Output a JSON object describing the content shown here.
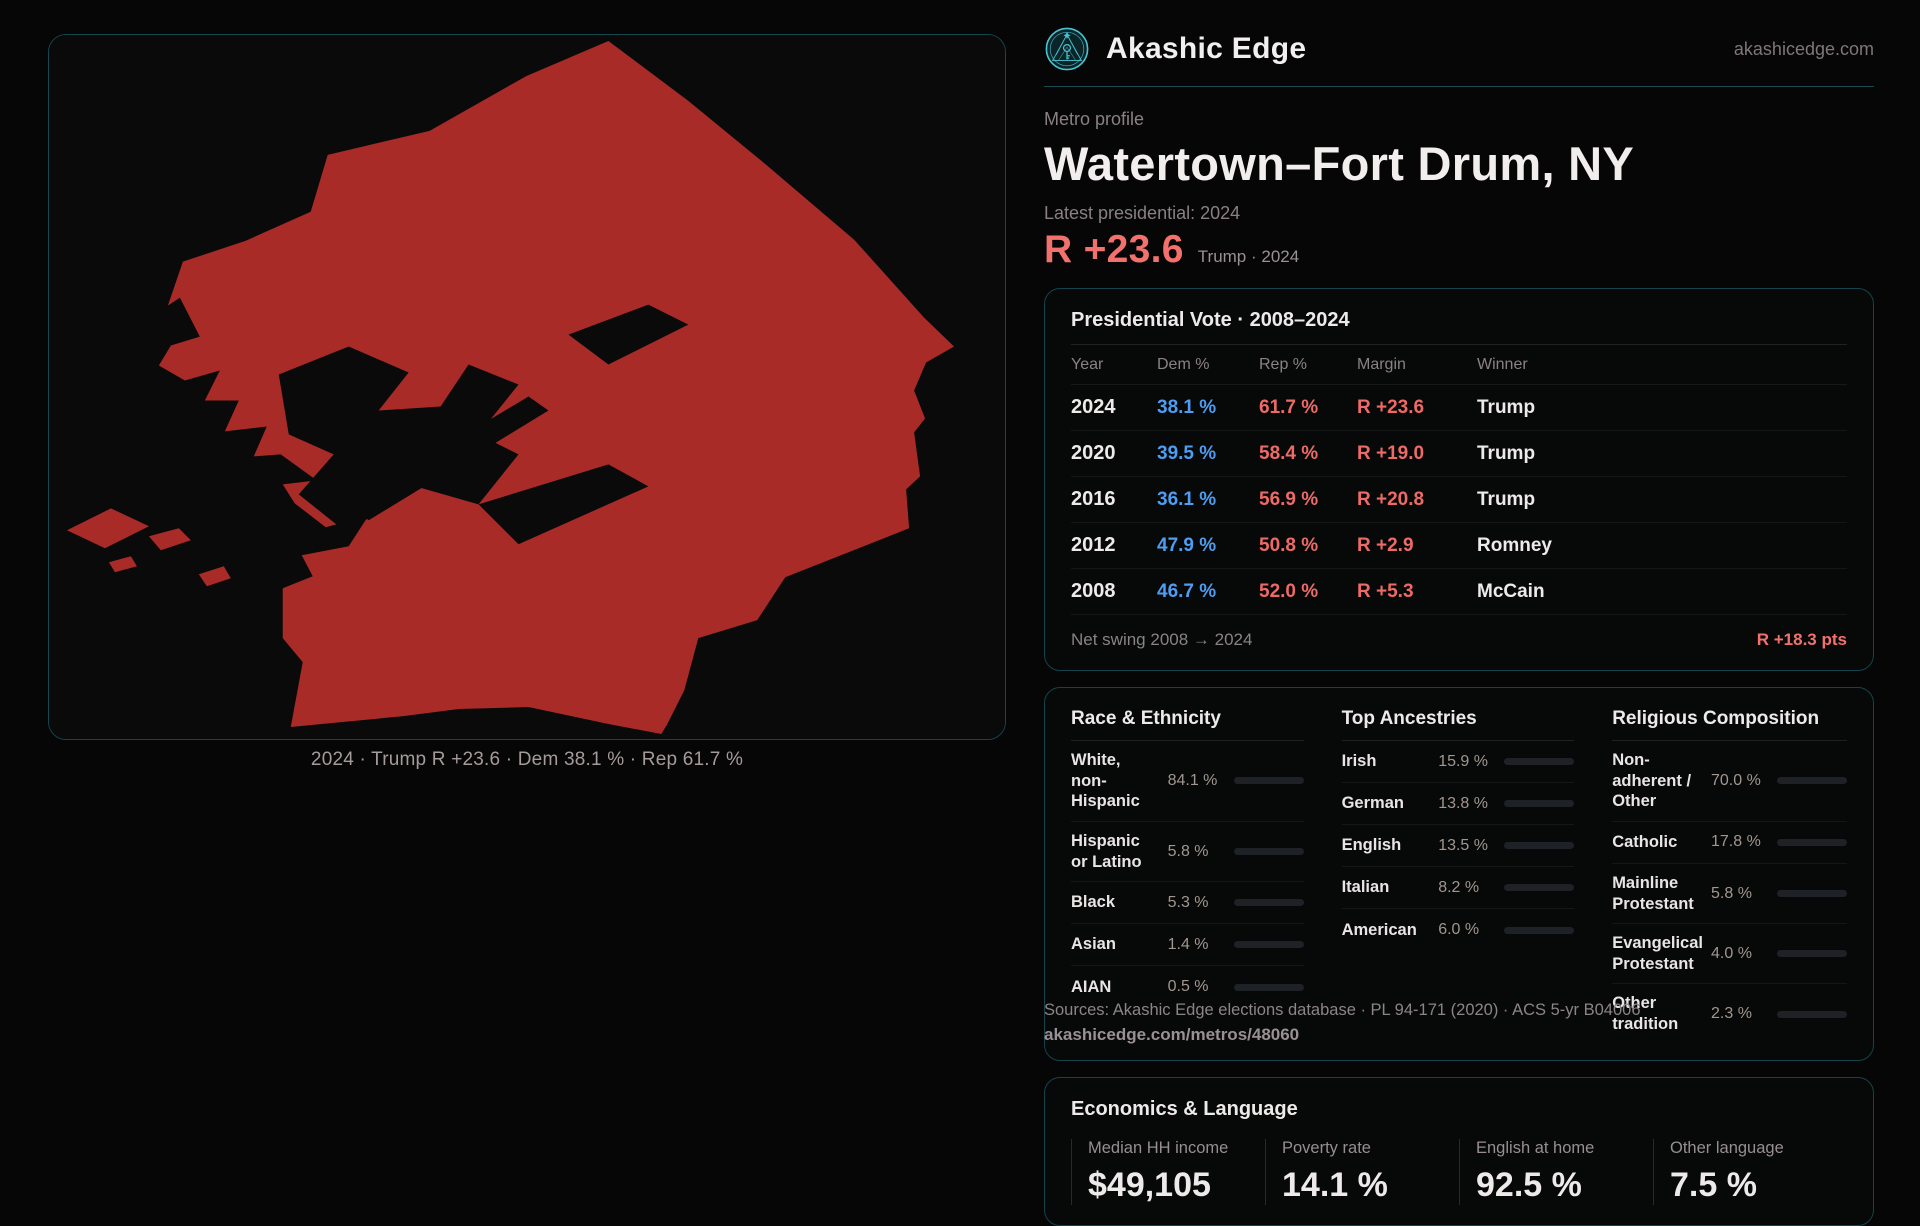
{
  "brand": {
    "name": "Akashic Edge",
    "domain": "akashicedge.com",
    "accent": "#4fc9d5"
  },
  "profile": {
    "eyebrow": "Metro profile",
    "title": "Watertown–Fort Drum, NY",
    "latest_label": "Latest presidential: 2024",
    "headline_margin": "R +23.6",
    "headline_context": "Trump · 2024",
    "margin_color": "#f2716d"
  },
  "map": {
    "caption": "2024 · Trump R +23.6 · Dem 38.1 % · Rep 61.7 %",
    "fill_color": "#a82b28",
    "background": "#0a0a0a",
    "border_color": "#17464e"
  },
  "vote_table": {
    "title": "Presidential Vote · 2008–2024",
    "columns": [
      "Year",
      "Dem %",
      "Rep %",
      "Margin",
      "Winner"
    ],
    "rows": [
      {
        "year": "2024",
        "dem": "38.1 %",
        "rep": "61.7 %",
        "margin": "R +23.6",
        "winner": "Trump"
      },
      {
        "year": "2020",
        "dem": "39.5 %",
        "rep": "58.4 %",
        "margin": "R +19.0",
        "winner": "Trump"
      },
      {
        "year": "2016",
        "dem": "36.1 %",
        "rep": "56.9 %",
        "margin": "R +20.8",
        "winner": "Trump"
      },
      {
        "year": "2012",
        "dem": "47.9 %",
        "rep": "50.8 %",
        "margin": "R +2.9",
        "winner": "Romney"
      },
      {
        "year": "2008",
        "dem": "46.7 %",
        "rep": "52.0 %",
        "margin": "R +5.3",
        "winner": "McCain"
      }
    ],
    "swing_label": "Net swing 2008 → 2024",
    "swing_value": "R +18.3 pts",
    "dem_color": "#4e9df2",
    "rep_color": "#ee6a66"
  },
  "chart_data": [
    {
      "type": "table",
      "title": "Presidential Vote · 2008–2024",
      "categories": [
        2024,
        2020,
        2016,
        2012,
        2008
      ],
      "series": [
        {
          "name": "Dem %",
          "values": [
            38.1,
            39.5,
            36.1,
            47.9,
            46.7
          ]
        },
        {
          "name": "Rep %",
          "values": [
            61.7,
            58.4,
            56.9,
            50.8,
            52.0
          ]
        },
        {
          "name": "R margin",
          "values": [
            23.6,
            19.0,
            20.8,
            2.9,
            5.3
          ]
        }
      ],
      "annotations": [
        "Winners: Trump, Trump, Trump, Romney, McCain",
        "Net swing 2008 → 2024: R +18.3 pts"
      ]
    },
    {
      "type": "bar",
      "title": "Race & Ethnicity",
      "categories": [
        "White, non-Hispanic",
        "Hispanic or Latino",
        "Black",
        "Asian",
        "AIAN"
      ],
      "values": [
        84.1,
        5.8,
        5.3,
        1.4,
        0.5
      ],
      "xlabel": "",
      "ylabel": "%",
      "ylim": [
        0,
        100
      ]
    },
    {
      "type": "bar",
      "title": "Top Ancestries",
      "categories": [
        "Irish",
        "German",
        "English",
        "Italian",
        "American"
      ],
      "values": [
        15.9,
        13.8,
        13.5,
        8.2,
        6.0
      ],
      "xlabel": "",
      "ylabel": "%",
      "ylim": [
        0,
        100
      ]
    },
    {
      "type": "bar",
      "title": "Religious Composition",
      "categories": [
        "Non-adherent / Other",
        "Catholic",
        "Mainline Protestant",
        "Evangelical Protestant",
        "Other tradition"
      ],
      "values": [
        70.0,
        17.8,
        5.8,
        4.0,
        2.3
      ],
      "xlabel": "",
      "ylabel": "%",
      "ylim": [
        0,
        100
      ]
    }
  ],
  "demographics": {
    "race": {
      "title": "Race & Ethnicity",
      "rows": [
        {
          "label": "White, non-Hispanic",
          "value": "84.1 %",
          "pct": 84.1,
          "color": "#8ba0bd"
        },
        {
          "label": "Hispanic or Latino",
          "value": "5.8 %",
          "pct": 5.8,
          "color": "#e6930f"
        },
        {
          "label": "Black",
          "value": "5.3 %",
          "pct": 5.3,
          "color": "#8d5cf0"
        },
        {
          "label": "Asian",
          "value": "1.4 %",
          "pct": 1.4,
          "color": "#1ec98f"
        },
        {
          "label": "AIAN",
          "value": "0.5 %",
          "pct": 0.5,
          "color": "#5a6068"
        }
      ]
    },
    "ancestries": {
      "title": "Top Ancestries",
      "rows": [
        {
          "label": "Irish",
          "value": "15.9 %",
          "pct": 15.9,
          "color": "#8ba0bd"
        },
        {
          "label": "German",
          "value": "13.8 %",
          "pct": 13.8,
          "color": "#8ba0bd"
        },
        {
          "label": "English",
          "value": "13.5 %",
          "pct": 13.5,
          "color": "#8ba0bd"
        },
        {
          "label": "Italian",
          "value": "8.2 %",
          "pct": 8.2,
          "color": "#8ba0bd"
        },
        {
          "label": "American",
          "value": "6.0 %",
          "pct": 6.0,
          "color": "#8ba0bd"
        }
      ]
    },
    "religion": {
      "title": "Religious Composition",
      "rows": [
        {
          "label": "Non-adherent / Other",
          "value": "70.0 %",
          "pct": 70.0,
          "color": "#7e8b9e"
        },
        {
          "label": "Catholic",
          "value": "17.8 %",
          "pct": 17.8,
          "color": "#e8b41e"
        },
        {
          "label": "Mainline Protestant",
          "value": "5.8 %",
          "pct": 5.8,
          "color": "#3d7ef0"
        },
        {
          "label": "Evangelical Protestant",
          "value": "4.0 %",
          "pct": 4.0,
          "color": "#e85548"
        },
        {
          "label": "Other tradition",
          "value": "2.3 %",
          "pct": 2.3,
          "color": "#8a9097"
        }
      ]
    }
  },
  "economics": {
    "title": "Economics & Language",
    "stats": [
      {
        "label": "Median HH income",
        "value": "$49,105"
      },
      {
        "label": "Poverty rate",
        "value": "14.1 %"
      },
      {
        "label": "English at home",
        "value": "92.5 %"
      },
      {
        "label": "Other language",
        "value": "7.5 %"
      }
    ]
  },
  "footer": {
    "sources": "Sources: Akashic Edge elections database · PL 94-171 (2020) · ACS 5-yr B04006",
    "permalink": "akashicedge.com/metros/48060"
  }
}
